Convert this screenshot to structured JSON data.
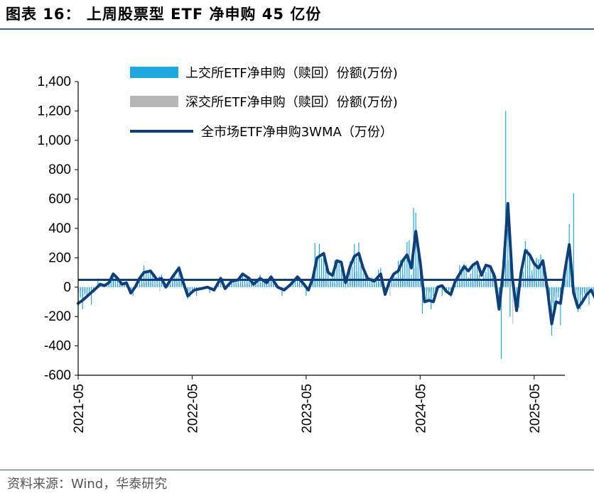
{
  "figure_title": "图表 16：   上周股票型 ETF 净申购 45 亿份",
  "source_note": "资料来源：Wind，华泰研究",
  "colors": {
    "sh_bar": "#1fa8e0",
    "sz_bar": "#b7b7b7",
    "line": "#0f3f7a",
    "axis": "#000000",
    "rule": "#3a5f8a"
  },
  "chart_data": {
    "type": "bar+line",
    "title": "上周股票型 ETF 净申购 45 亿份",
    "ylim": [
      -600,
      1400
    ],
    "yticks": [
      -600,
      -400,
      -200,
      0,
      200,
      400,
      600,
      800,
      1000,
      1200,
      1400
    ],
    "ytick_labels": [
      "-600",
      "-400",
      "-200",
      "0",
      "200",
      "400",
      "600",
      "800",
      "1,000",
      "1,200",
      "1,400"
    ],
    "xtick_labels": [
      "2021-05",
      "2022-05",
      "2023-05",
      "2024-05",
      "2025-05"
    ],
    "xtick_weeks": [
      0,
      52,
      104,
      156,
      208
    ],
    "total_weeks": 222,
    "legend": [
      {
        "label": "上交所ETF净申购（赎回）份额(万份)",
        "kind": "bar",
        "color_key": "sh_bar"
      },
      {
        "label": "深交所ETF净申购（赎回）份额(万份)",
        "kind": "bar",
        "color_key": "sz_bar"
      },
      {
        "label": "全市场ETF净申购3WMA（万份）",
        "kind": "line",
        "color_key": "line"
      }
    ],
    "line_anchors": [
      [
        0,
        -110
      ],
      [
        2,
        -90
      ],
      [
        5,
        -50
      ],
      [
        8,
        -10
      ],
      [
        10,
        20
      ],
      [
        12,
        10
      ],
      [
        14,
        30
      ],
      [
        16,
        90
      ],
      [
        18,
        60
      ],
      [
        20,
        20
      ],
      [
        22,
        30
      ],
      [
        24,
        -40
      ],
      [
        26,
        0
      ],
      [
        28,
        60
      ],
      [
        30,
        100
      ],
      [
        33,
        110
      ],
      [
        36,
        50
      ],
      [
        38,
        60
      ],
      [
        40,
        0
      ],
      [
        43,
        70
      ],
      [
        46,
        130
      ],
      [
        48,
        30
      ],
      [
        50,
        -60
      ],
      [
        53,
        -20
      ],
      [
        56,
        -10
      ],
      [
        59,
        0
      ],
      [
        62,
        -20
      ],
      [
        65,
        60
      ],
      [
        67,
        -10
      ],
      [
        70,
        40
      ],
      [
        73,
        50
      ],
      [
        75,
        90
      ],
      [
        78,
        60
      ],
      [
        80,
        20
      ],
      [
        83,
        60
      ],
      [
        86,
        30
      ],
      [
        88,
        70
      ],
      [
        91,
        0
      ],
      [
        94,
        -20
      ],
      [
        97,
        20
      ],
      [
        100,
        70
      ],
      [
        103,
        20
      ],
      [
        105,
        -20
      ],
      [
        107,
        60
      ],
      [
        109,
        200
      ],
      [
        112,
        230
      ],
      [
        114,
        100
      ],
      [
        116,
        80
      ],
      [
        118,
        180
      ],
      [
        120,
        170
      ],
      [
        122,
        30
      ],
      [
        124,
        140
      ],
      [
        126,
        210
      ],
      [
        128,
        230
      ],
      [
        130,
        130
      ],
      [
        132,
        60
      ],
      [
        135,
        40
      ],
      [
        138,
        90
      ],
      [
        140,
        -50
      ],
      [
        142,
        40
      ],
      [
        144,
        90
      ],
      [
        146,
        110
      ],
      [
        148,
        180
      ],
      [
        150,
        220
      ],
      [
        152,
        130
      ],
      [
        154,
        380
      ],
      [
        156,
        170
      ],
      [
        158,
        -100
      ],
      [
        160,
        -90
      ],
      [
        162,
        -100
      ],
      [
        164,
        0
      ],
      [
        166,
        10
      ],
      [
        168,
        -30
      ],
      [
        170,
        -50
      ],
      [
        172,
        40
      ],
      [
        174,
        90
      ],
      [
        176,
        140
      ],
      [
        178,
        110
      ],
      [
        180,
        150
      ],
      [
        182,
        170
      ],
      [
        184,
        80
      ],
      [
        186,
        150
      ],
      [
        188,
        140
      ],
      [
        190,
        70
      ],
      [
        192,
        -150
      ],
      [
        194,
        130
      ],
      [
        196,
        570
      ],
      [
        198,
        70
      ],
      [
        200,
        -160
      ],
      [
        202,
        100
      ],
      [
        204,
        250
      ],
      [
        206,
        220
      ],
      [
        208,
        160
      ],
      [
        210,
        130
      ],
      [
        212,
        180
      ],
      [
        214,
        -10
      ],
      [
        216,
        -250
      ],
      [
        218,
        -100
      ],
      [
        220,
        -110
      ],
      [
        222,
        110
      ],
      [
        224,
        290
      ],
      [
        226,
        -40
      ],
      [
        228,
        -140
      ],
      [
        230,
        -100
      ],
      [
        232,
        -50
      ],
      [
        234,
        -20
      ],
      [
        236,
        -80
      ],
      [
        238,
        -160
      ],
      [
        240,
        -50
      ],
      [
        242,
        -170
      ],
      [
        244,
        -100
      ],
      [
        246,
        10
      ],
      [
        247,
        60
      ]
    ],
    "sh_spikes": [
      [
        2,
        -150
      ],
      [
        6,
        -120
      ],
      [
        9,
        60
      ],
      [
        16,
        50
      ],
      [
        25,
        -60
      ],
      [
        30,
        60
      ],
      [
        48,
        60
      ],
      [
        50,
        -80
      ],
      [
        54,
        -60
      ],
      [
        60,
        -40
      ],
      [
        66,
        60
      ],
      [
        75,
        90
      ],
      [
        86,
        60
      ],
      [
        93,
        -60
      ],
      [
        101,
        70
      ],
      [
        104,
        -60
      ],
      [
        108,
        300
      ],
      [
        111,
        200
      ],
      [
        118,
        190
      ],
      [
        126,
        180
      ],
      [
        129,
        200
      ],
      [
        137,
        120
      ],
      [
        146,
        180
      ],
      [
        151,
        320
      ],
      [
        153,
        540
      ],
      [
        157,
        -180
      ],
      [
        161,
        -150
      ],
      [
        166,
        -60
      ],
      [
        174,
        150
      ],
      [
        180,
        150
      ],
      [
        187,
        140
      ],
      [
        193,
        -490
      ],
      [
        195,
        1200
      ],
      [
        197,
        -200
      ],
      [
        201,
        -140
      ],
      [
        205,
        260
      ],
      [
        209,
        200
      ],
      [
        216,
        -330
      ],
      [
        220,
        -260
      ],
      [
        224,
        430
      ],
      [
        226,
        640
      ],
      [
        228,
        -170
      ],
      [
        233,
        -120
      ],
      [
        238,
        -290
      ],
      [
        242,
        -250
      ],
      [
        245,
        200
      ]
    ],
    "sz_spikes": [
      [
        7,
        -40
      ],
      [
        21,
        30
      ],
      [
        37,
        -30
      ],
      [
        57,
        -20
      ],
      [
        84,
        30
      ],
      [
        107,
        100
      ],
      [
        120,
        90
      ],
      [
        142,
        -60
      ],
      [
        163,
        -50
      ],
      [
        189,
        90
      ],
      [
        198,
        -250
      ],
      [
        214,
        -80
      ],
      [
        231,
        -60
      ],
      [
        243,
        -120
      ]
    ],
    "hline_value": 50
  }
}
